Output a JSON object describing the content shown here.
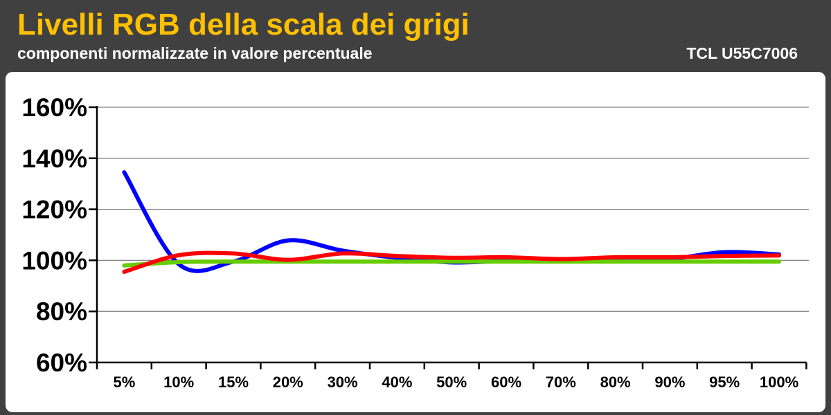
{
  "header": {
    "title": "Livelli RGB della scala dei grigi",
    "subtitle": "componenti normalizzate in valore percentuale",
    "model": "TCL U55C7006"
  },
  "colors": {
    "background": "#404040",
    "title": "#ffc000",
    "plot_background": "#ffffff",
    "grid": "#808080",
    "blue": "#0000ff",
    "red": "#ff0000",
    "green": "#66cc00"
  },
  "chart_data": {
    "type": "line",
    "title": "Livelli RGB della scala dei grigi",
    "subtitle": "componenti normalizzate in valore percentuale",
    "xlabel": "",
    "ylabel": "",
    "categories": [
      "5%",
      "10%",
      "15%",
      "20%",
      "30%",
      "40%",
      "50%",
      "60%",
      "70%",
      "80%",
      "90%",
      "95%",
      "100%"
    ],
    "ylim": [
      60,
      160
    ],
    "ytick_values": [
      60,
      80,
      100,
      120,
      140,
      160
    ],
    "ytick_labels": [
      "60%",
      "80%",
      "100%",
      "120%",
      "140%",
      "160%"
    ],
    "grid": true,
    "legend": "none",
    "smooth": true,
    "series": [
      {
        "color": "#0000ff",
        "values": [
          134.5,
          98.5,
          99.5,
          107.8,
          103.8,
          101,
          99.2,
          99.8,
          100.2,
          99.7,
          100.5,
          103.2,
          102.3
        ]
      },
      {
        "color": "#66cc00",
        "values": [
          98,
          99.3,
          99.5,
          99.5,
          99.5,
          99.5,
          99.5,
          99.5,
          99.5,
          99.5,
          99.5,
          99.5,
          99.5
        ]
      },
      {
        "color": "#ff0000",
        "values": [
          95.5,
          102,
          102.7,
          100.2,
          102.7,
          101.7,
          101,
          101.2,
          100.5,
          101.2,
          101.2,
          101.7,
          101.9
        ]
      }
    ]
  }
}
